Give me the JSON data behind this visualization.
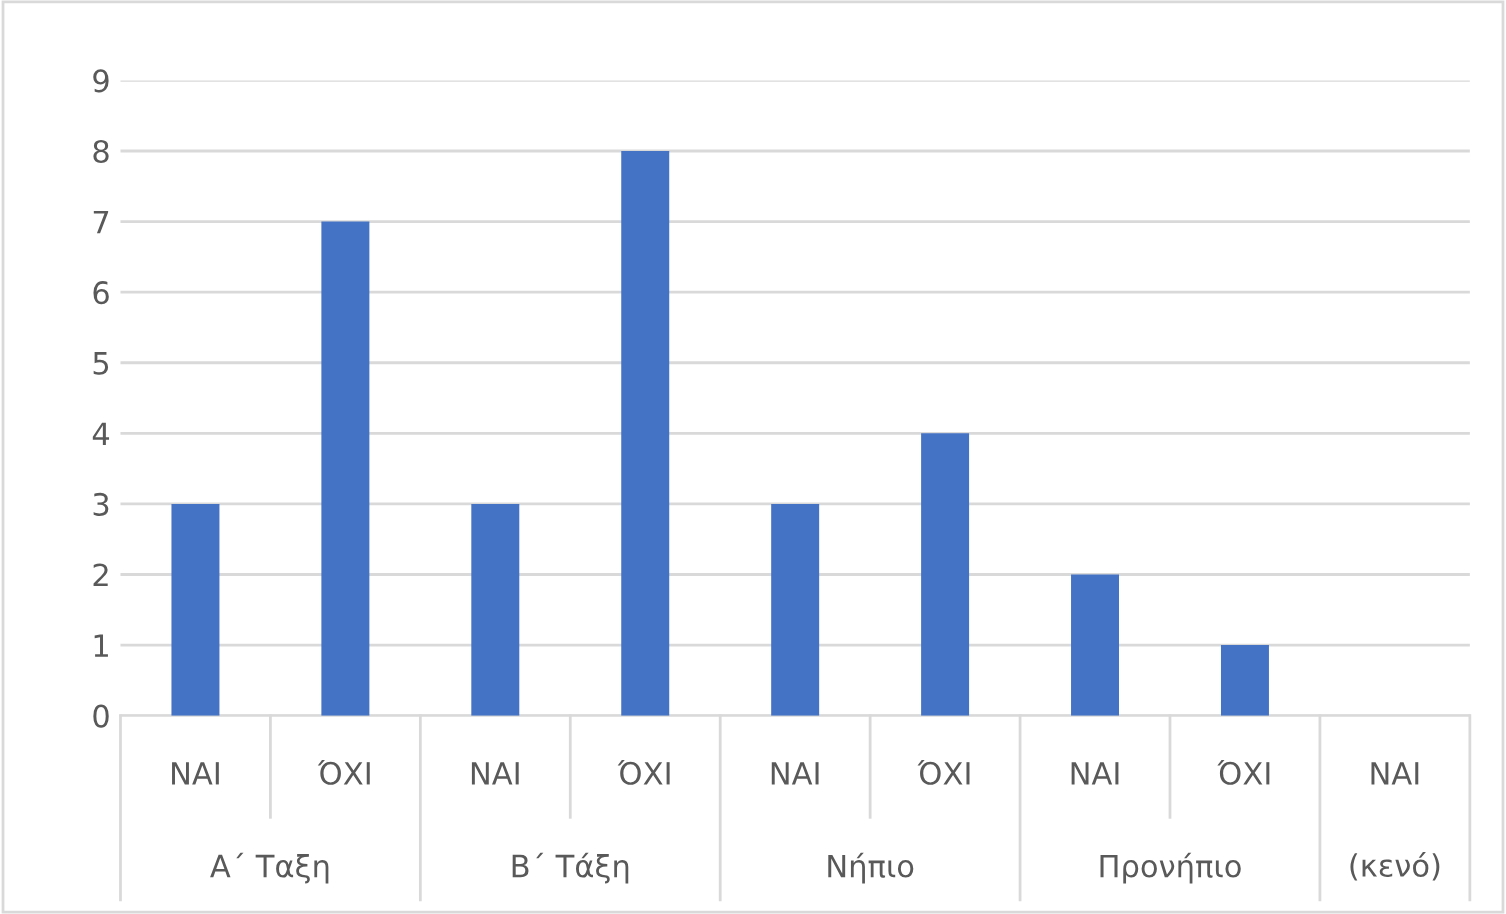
{
  "chart_data": {
    "type": "bar",
    "categories": [
      "ΝΑΙ",
      "ΌΧΙ",
      "ΝΑΙ",
      "ΌΧΙ",
      "ΝΑΙ",
      "ΌΧΙ",
      "ΝΑΙ",
      "ΌΧΙ",
      "ΝΑΙ"
    ],
    "values": [
      3,
      7,
      3,
      8,
      3,
      4,
      2,
      1,
      null
    ],
    "color": "#4472c4",
    "annotations": [
      "Α΄ Ταξη",
      "Β΄ Τάξη",
      "Νήπιο",
      "Προνήπιο",
      "(κενό)"
    ],
    "ylim": [
      0,
      9
    ],
    "yticks": [
      0,
      1,
      2,
      3,
      4,
      5,
      6,
      7,
      8,
      9
    ],
    "grid": "y",
    "legend": false
  }
}
